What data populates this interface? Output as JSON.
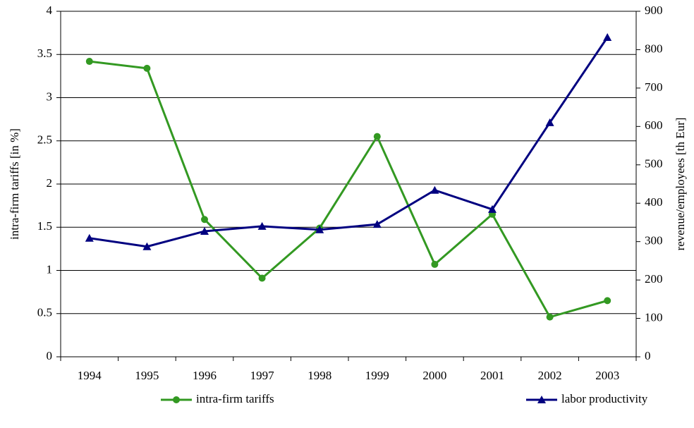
{
  "chart_data": {
    "type": "line",
    "y_label": "intra-firm tariffs [in %]",
    "y2_label": "revenue/employees [th Eur]",
    "categories": [
      "1994",
      "1995",
      "1996",
      "1997",
      "1998",
      "1999",
      "2000",
      "2001",
      "2002",
      "2003"
    ],
    "series": [
      {
        "name": "intra-firm tariffs",
        "color": "#339922",
        "marker": "circle",
        "axis": "y",
        "values": [
          3.42,
          3.34,
          1.59,
          0.91,
          1.49,
          2.55,
          1.07,
          1.65,
          0.46,
          0.65
        ]
      },
      {
        "name": "labor productivity",
        "color": "#000080",
        "marker": "triangle",
        "axis": "y2",
        "values": [
          309,
          287,
          327,
          340,
          331,
          345,
          434,
          384,
          610,
          832
        ]
      }
    ],
    "ylim": [
      0,
      4
    ],
    "yticks": [
      0,
      0.5,
      1,
      1.5,
      2,
      2.5,
      3,
      3.5,
      4
    ],
    "y2lim": [
      0,
      900
    ],
    "y2ticks": [
      0,
      100,
      200,
      300,
      400,
      500,
      600,
      700,
      800,
      900
    ],
    "grid": true,
    "legend": "bottom"
  }
}
